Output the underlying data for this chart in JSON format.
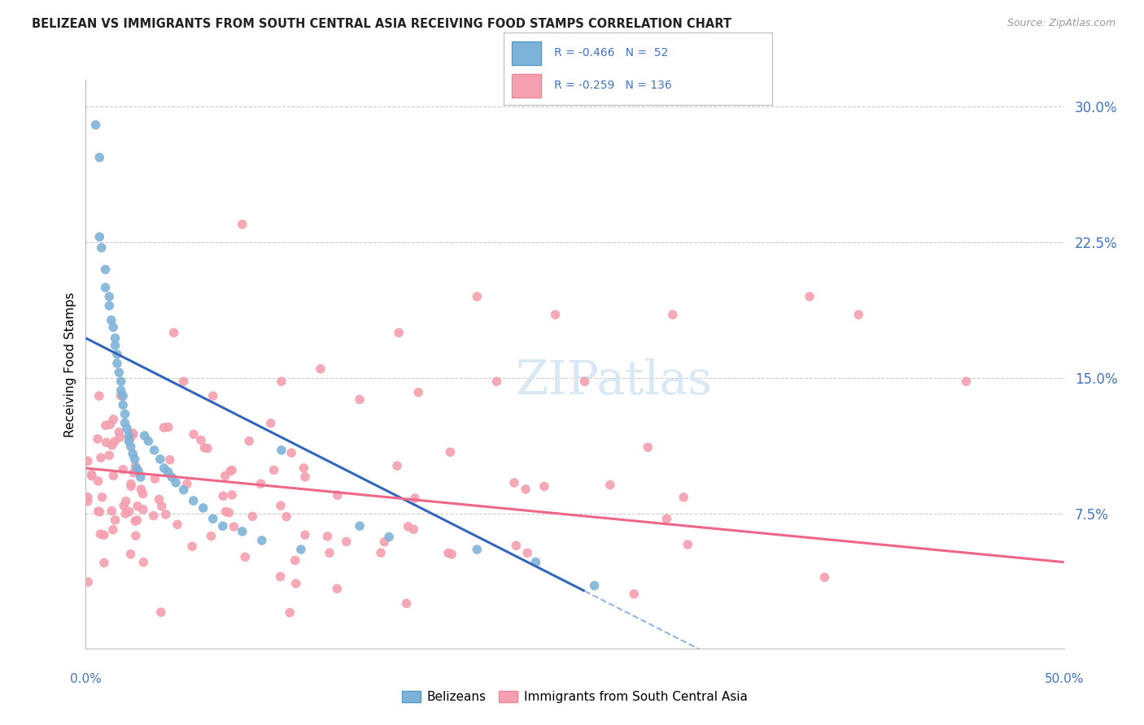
{
  "title": "BELIZEAN VS IMMIGRANTS FROM SOUTH CENTRAL ASIA RECEIVING FOOD STAMPS CORRELATION CHART",
  "source": "Source: ZipAtlas.com",
  "ylabel": "Receiving Food Stamps",
  "right_yticks": [
    "30.0%",
    "22.5%",
    "15.0%",
    "7.5%"
  ],
  "right_ytick_vals": [
    0.3,
    0.225,
    0.15,
    0.075
  ],
  "xlim": [
    0.0,
    0.5
  ],
  "ylim": [
    0.0,
    0.315
  ],
  "blue_color": "#7EB3D8",
  "pink_color": "#F4A0B0",
  "blue_edge": "#5599CC",
  "pink_edge": "#EE8899",
  "trend_blue": "#3366BB",
  "trend_pink": "#EE6688",
  "watermark_color": "#D8E8F5",
  "legend_text_color": "#4472C4",
  "right_axis_color": "#4472C4",
  "grid_color": "#CCCCCC",
  "title_color": "#222222",
  "source_color": "#999999"
}
